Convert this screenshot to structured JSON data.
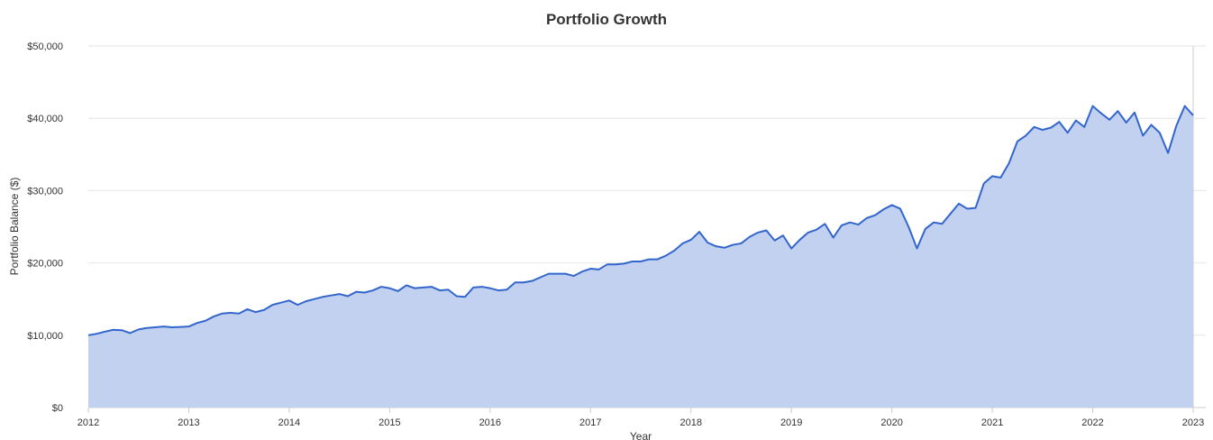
{
  "chart_data": {
    "type": "area",
    "title": "Portfolio Growth",
    "xlabel": "Year",
    "ylabel": "Portfolio Balance ($)",
    "xlim": [
      2012,
      2023
    ],
    "ylim": [
      0,
      50000
    ],
    "x_ticks": [
      "2012",
      "2013",
      "2014",
      "2015",
      "2016",
      "2017",
      "2018",
      "2019",
      "2020",
      "2021",
      "2022",
      "2023"
    ],
    "y_ticks": [
      "$0",
      "$10,000",
      "$20,000",
      "$30,000",
      "$40,000",
      "$50,000"
    ],
    "grid": true,
    "legend": "none",
    "colors": {
      "line": "#3366cc",
      "fill": "#c2d1f0",
      "grid": "#e6e6e6",
      "axis": "#cccccc",
      "text": "#333333"
    },
    "series": [
      {
        "x_start": "2012-01",
        "x_step": "1 month",
        "values": [
          10000,
          10200,
          10500,
          10750,
          10700,
          10300,
          10800,
          11000,
          11100,
          11200,
          11100,
          11150,
          11200,
          11700,
          12000,
          12600,
          13000,
          13100,
          13000,
          13600,
          13200,
          13500,
          14200,
          14500,
          14800,
          14200,
          14700,
          15000,
          15300,
          15500,
          15700,
          15400,
          16000,
          15900,
          16200,
          16700,
          16500,
          16100,
          16900,
          16500,
          16600,
          16700,
          16200,
          16300,
          15400,
          15300,
          16600,
          16700,
          16500,
          16200,
          16300,
          17300,
          17300,
          17500,
          18000,
          18500,
          18500,
          18500,
          18200,
          18800,
          19200,
          19100,
          19800,
          19800,
          19900,
          20200,
          20200,
          20500,
          20500,
          21000,
          21700,
          22700,
          23200,
          24300,
          22800,
          22300,
          22100,
          22500,
          22700,
          23600,
          24200,
          24500,
          23100,
          23800,
          22000,
          23200,
          24200,
          24600,
          25400,
          23500,
          25200,
          25600,
          25300,
          26200,
          26600,
          27400,
          28000,
          27500,
          25000,
          22000,
          24700,
          25600,
          25400,
          26800,
          28200,
          27500,
          27600,
          31000,
          32000,
          31800,
          33800,
          36800,
          37600,
          38800,
          38400,
          38700,
          39500,
          38000,
          39700,
          38800,
          41700,
          40700,
          39800,
          41000,
          39400,
          40800,
          37600,
          39100,
          38000,
          35200,
          39000,
          41700,
          40400
        ]
      }
    ]
  }
}
